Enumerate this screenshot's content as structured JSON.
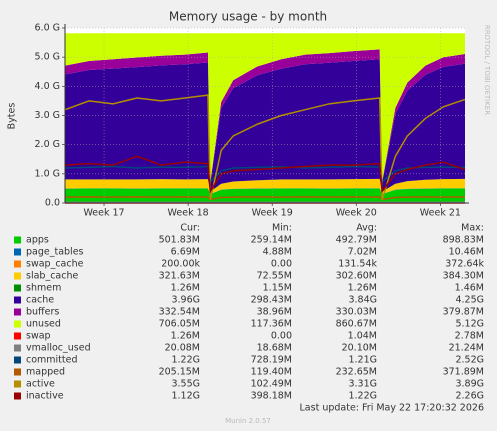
{
  "chart_data": {
    "type": "area",
    "title": "Memory usage - by month",
    "y_label": "Bytes",
    "side_text": "RRDTOOL / TOBI OETIKER",
    "x": [
      0,
      2,
      4,
      6,
      8,
      10,
      11.9,
      12.1,
      13,
      14,
      16,
      18,
      20,
      22,
      24,
      26.2,
      26.4,
      27.5,
      28.5,
      30,
      31.5,
      33.3
    ],
    "xlim": [
      0,
      33.3
    ],
    "xticks": [
      {
        "value": 3.25,
        "label": "Week 17"
      },
      {
        "value": 10.25,
        "label": "Week 18"
      },
      {
        "value": 17.25,
        "label": "Week 19"
      },
      {
        "value": 24.25,
        "label": "Week 20"
      },
      {
        "value": 31.25,
        "label": "Week 21"
      }
    ],
    "ylim": [
      0,
      6
    ],
    "yticks": [
      {
        "value": 0,
        "label": "0.0"
      },
      {
        "value": 1,
        "label": "1.0 G"
      },
      {
        "value": 2,
        "label": "2.0 G"
      },
      {
        "value": 3,
        "label": "3.0 G"
      },
      {
        "value": 4,
        "label": "4.0 G"
      },
      {
        "value": 5,
        "label": "5.0 G"
      },
      {
        "value": 6,
        "label": "6.0 G"
      }
    ],
    "grid": true,
    "stat_headers": [
      "Cur:",
      "Min:",
      "Avg:",
      "Max:"
    ],
    "series": [
      {
        "name": "apps",
        "color": "#00cc00",
        "style": "area",
        "stats": [
          "501.83M",
          "259.14M",
          "492.79M",
          "898.83M"
        ],
        "values": [
          0.49,
          0.5,
          0.5,
          0.49,
          0.5,
          0.5,
          0.5,
          0.3,
          0.45,
          0.48,
          0.49,
          0.5,
          0.5,
          0.49,
          0.5,
          0.5,
          0.3,
          0.45,
          0.48,
          0.49,
          0.5,
          0.5
        ]
      },
      {
        "name": "page_tables",
        "color": "#0066b3",
        "style": "area",
        "stats": [
          "6.69M",
          "4.88M",
          "7.02M",
          "10.46M"
        ],
        "values": [
          0.007,
          0.007,
          0.007,
          0.007,
          0.007,
          0.007,
          0.007,
          0.007,
          0.007,
          0.007,
          0.007,
          0.007,
          0.007,
          0.007,
          0.007,
          0.007,
          0.007,
          0.007,
          0.007,
          0.007,
          0.007,
          0.007
        ]
      },
      {
        "name": "swap_cache",
        "color": "#ff8000",
        "style": "area",
        "stats": [
          "200.00k",
          "0.00",
          "131.54k",
          "372.64k"
        ],
        "values": [
          0.0002,
          0.0002,
          0.0002,
          0.0002,
          0.0002,
          0.0002,
          0.0002,
          0.0002,
          0.0002,
          0.0002,
          0.0002,
          0.0002,
          0.0002,
          0.0002,
          0.0002,
          0.0002,
          0.0002,
          0.0002,
          0.0002,
          0.0002,
          0.0002,
          0.0002
        ]
      },
      {
        "name": "slab_cache",
        "color": "#ffcc00",
        "style": "area",
        "stats": [
          "321.63M",
          "72.55M",
          "302.60M",
          "384.30M"
        ],
        "values": [
          0.31,
          0.3,
          0.3,
          0.31,
          0.31,
          0.3,
          0.31,
          0.08,
          0.2,
          0.25,
          0.28,
          0.3,
          0.3,
          0.31,
          0.31,
          0.32,
          0.08,
          0.2,
          0.26,
          0.3,
          0.31,
          0.32
        ]
      },
      {
        "name": "shmem",
        "color": "#008f00",
        "style": "area",
        "stats": [
          "1.26M",
          "1.15M",
          "1.26M",
          "1.46M"
        ],
        "values": [
          0.0013,
          0.0013,
          0.0013,
          0.0013,
          0.0013,
          0.0013,
          0.0013,
          0.0013,
          0.0013,
          0.0013,
          0.0013,
          0.0013,
          0.0013,
          0.0013,
          0.0013,
          0.0013,
          0.0013,
          0.0013,
          0.0013,
          0.0013,
          0.0013,
          0.0013
        ]
      },
      {
        "name": "cache",
        "color": "#330099",
        "style": "area",
        "stats": [
          "3.96G",
          "298.43M",
          "3.84G",
          "4.25G"
        ],
        "values": [
          3.6,
          3.75,
          3.8,
          3.85,
          3.9,
          3.95,
          4.0,
          0.3,
          2.6,
          3.2,
          3.6,
          3.8,
          3.95,
          4.0,
          4.05,
          4.1,
          0.3,
          2.4,
          3.1,
          3.6,
          3.85,
          3.95
        ]
      },
      {
        "name": "buffers",
        "color": "#990099",
        "style": "area",
        "stats": [
          "332.54M",
          "38.96M",
          "330.03M",
          "379.87M"
        ],
        "values": [
          0.3,
          0.31,
          0.32,
          0.33,
          0.33,
          0.33,
          0.34,
          0.04,
          0.2,
          0.27,
          0.3,
          0.32,
          0.33,
          0.33,
          0.34,
          0.34,
          0.04,
          0.2,
          0.28,
          0.31,
          0.33,
          0.33
        ]
      },
      {
        "name": "unused",
        "color": "#ccff00",
        "style": "area",
        "stats": [
          "706.05M",
          "117.36M",
          "860.67M",
          "5.12G"
        ],
        "values": [
          1.11,
          0.95,
          0.89,
          0.83,
          0.77,
          0.73,
          0.66,
          5.09,
          2.36,
          1.61,
          1.14,
          0.89,
          0.73,
          0.68,
          0.61,
          0.55,
          5.09,
          2.56,
          1.69,
          1.11,
          0.82,
          0.71
        ]
      },
      {
        "name": "swap",
        "color": "#ff0000",
        "style": "line",
        "stats": [
          "1.26M",
          "0.00",
          "1.04M",
          "2.78M"
        ],
        "values": [
          0.001,
          0.001,
          0.001,
          0.001,
          0.001,
          0.001,
          0.001,
          0.001,
          0.001,
          0.001,
          0.001,
          0.001,
          0.001,
          0.001,
          0.001,
          0.001,
          0.001,
          0.001,
          0.001,
          0.001,
          0.001,
          0.001
        ]
      },
      {
        "name": "vmalloc_used",
        "color": "#808080",
        "style": "line",
        "stats": [
          "20.08M",
          "18.68M",
          "20.10M",
          "21.24M"
        ],
        "values": [
          0.02,
          0.02,
          0.02,
          0.02,
          0.02,
          0.02,
          0.02,
          0.02,
          0.02,
          0.02,
          0.02,
          0.02,
          0.02,
          0.02,
          0.02,
          0.02,
          0.02,
          0.02,
          0.02,
          0.02,
          0.02,
          0.02
        ]
      },
      {
        "name": "committed",
        "color": "#00487d",
        "style": "line",
        "stats": [
          "1.22G",
          "728.19M",
          "1.21G",
          "2.52G"
        ],
        "values": [
          1.2,
          1.22,
          1.25,
          1.2,
          1.23,
          1.22,
          1.25,
          0.73,
          1.1,
          1.2,
          1.22,
          1.24,
          1.2,
          1.22,
          1.25,
          1.23,
          0.73,
          1.1,
          1.2,
          1.22,
          1.23,
          1.22
        ]
      },
      {
        "name": "mapped",
        "color": "#b35a00",
        "style": "line",
        "stats": [
          "205.15M",
          "119.40M",
          "232.65M",
          "371.89M"
        ],
        "values": [
          0.2,
          0.21,
          0.2,
          0.21,
          0.2,
          0.21,
          0.2,
          0.12,
          0.19,
          0.2,
          0.21,
          0.2,
          0.21,
          0.2,
          0.21,
          0.2,
          0.12,
          0.19,
          0.2,
          0.21,
          0.2,
          0.21
        ]
      },
      {
        "name": "active",
        "color": "#b38f00",
        "style": "line",
        "stats": [
          "3.55G",
          "102.49M",
          "3.31G",
          "3.89G"
        ],
        "values": [
          3.2,
          3.5,
          3.4,
          3.6,
          3.5,
          3.6,
          3.7,
          0.1,
          1.8,
          2.3,
          2.7,
          3.0,
          3.2,
          3.4,
          3.5,
          3.6,
          0.1,
          1.6,
          2.3,
          2.9,
          3.3,
          3.55
        ]
      },
      {
        "name": "inactive",
        "color": "#990000",
        "style": "line",
        "stats": [
          "1.12G",
          "398.18M",
          "1.22G",
          "2.26G"
        ],
        "values": [
          1.3,
          1.35,
          1.3,
          1.6,
          1.3,
          1.4,
          1.35,
          0.4,
          1.0,
          1.1,
          1.15,
          1.2,
          1.25,
          1.3,
          1.3,
          1.35,
          0.4,
          1.0,
          1.15,
          1.3,
          1.4,
          1.15
        ]
      }
    ],
    "footer": "Last update: Fri May 22 17:20:32 2026",
    "version": "Munin 2.0.57"
  }
}
